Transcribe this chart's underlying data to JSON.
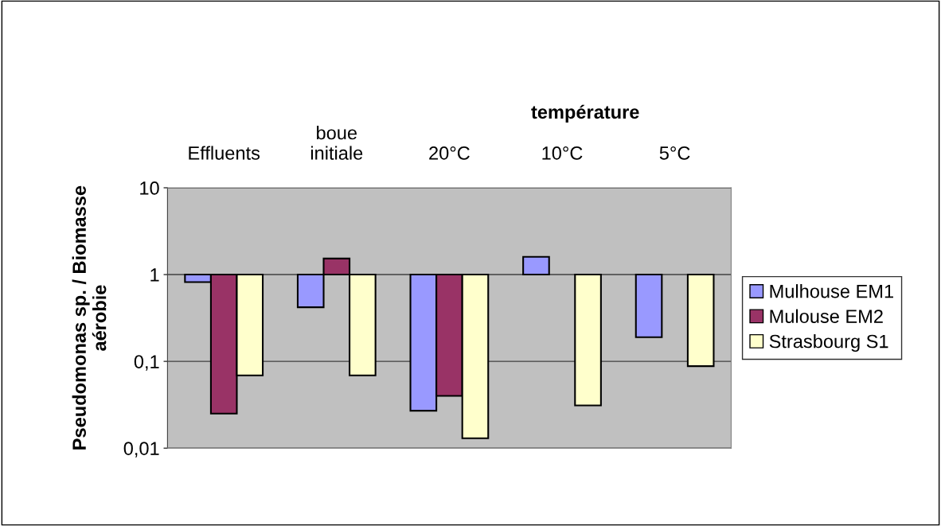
{
  "chart_data": {
    "type": "bar",
    "ylabel": "Pseudomonas sp. / Biomasse\naérobie",
    "categories": [
      "Effluents",
      "boue\ninitiale",
      "20°C",
      "10°C",
      "5°C"
    ],
    "series": [
      {
        "name": "Mulhouse EM1",
        "color": "#9999ff",
        "base": [
          0.82,
          0.42,
          0.027,
          1,
          0.19
        ],
        "values": [
          0.18,
          0.58,
          0.973,
          0.6,
          0.81
        ]
      },
      {
        "name": "Mulouse EM2",
        "color": "#993366",
        "base": [
          0.025,
          1,
          0.04,
          null,
          null
        ],
        "values": [
          0.975,
          0.53,
          0.96,
          null,
          null
        ]
      },
      {
        "name": "Strasbourg S1",
        "color": "#ffffcc",
        "base": [
          0.069,
          0.069,
          0.013,
          0.031,
          0.088
        ],
        "values": [
          0.931,
          0.931,
          0.987,
          0.969,
          0.912
        ]
      }
    ],
    "log": true,
    "ylim": [
      0.01,
      10
    ],
    "yticks": [
      {
        "value": 0.01,
        "label": "0,01"
      },
      {
        "value": 0.1,
        "label": "0,1"
      },
      1,
      10
    ],
    "grid": "y",
    "legend": "right",
    "annotations": [
      "température"
    ]
  }
}
